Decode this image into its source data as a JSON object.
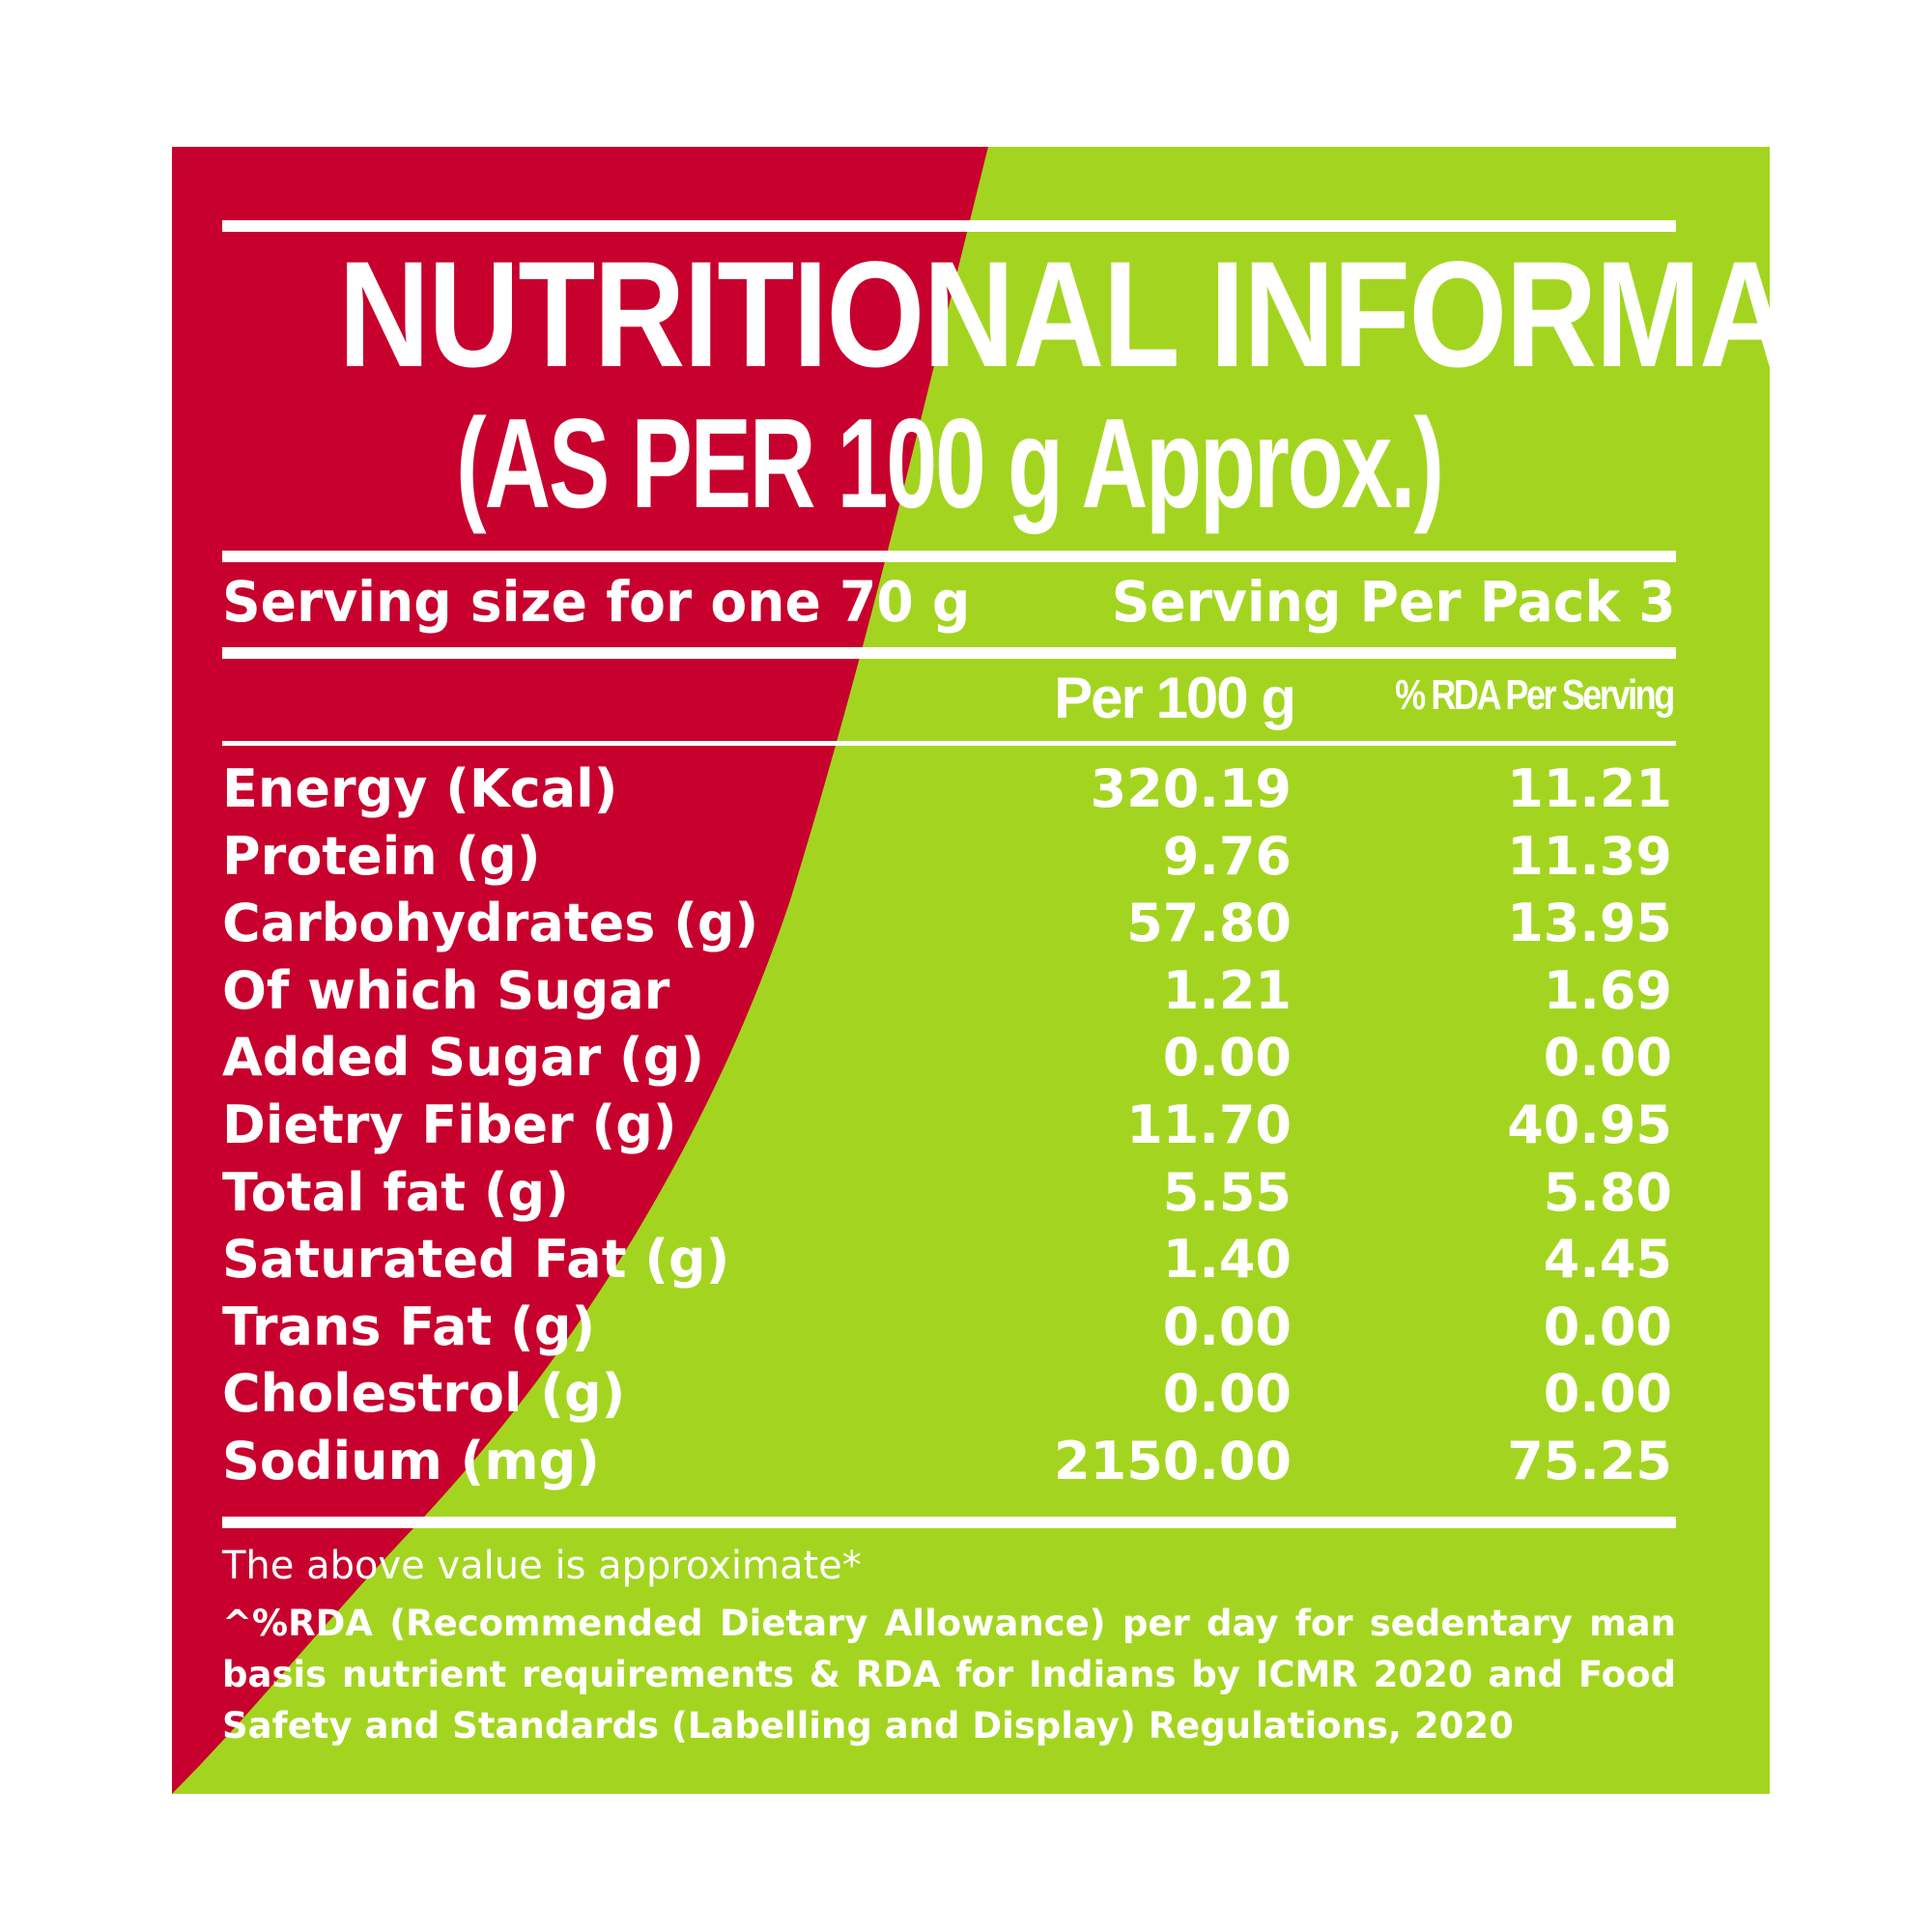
{
  "colors": {
    "red": "#c8002e",
    "green": "#a3d520",
    "text": "#ffffff"
  },
  "title": "NUTRITIONAL INFORMATION",
  "subtitle": "(AS PER 100 g Approx.)",
  "serving_size": "Serving size for one 70 g",
  "serving_per_pack": "Serving Per Pack 3",
  "columns": {
    "per_100g": "Per 100 g",
    "rda": "% RDA Per Serving"
  },
  "rows": [
    {
      "name": "Energy (Kcal)",
      "per_100g": "320.19",
      "rda": "11.21"
    },
    {
      "name": "Protein (g)",
      "per_100g": "9.76",
      "rda": "11.39"
    },
    {
      "name": "Carbohydrates (g)",
      "per_100g": "57.80",
      "rda": "13.95"
    },
    {
      "name": "Of which Sugar",
      "per_100g": "1.21",
      "rda": "1.69"
    },
    {
      "name": "Added Sugar (g)",
      "per_100g": "0.00",
      "rda": "0.00"
    },
    {
      "name": "Dietry Fiber (g)",
      "per_100g": "11.70",
      "rda": "40.95"
    },
    {
      "name": "Total fat (g)",
      "per_100g": "5.55",
      "rda": "5.80"
    },
    {
      "name": "Saturated Fat (g)",
      "per_100g": "1.40",
      "rda": "4.45"
    },
    {
      "name": "Trans Fat (g)",
      "per_100g": "0.00",
      "rda": "0.00"
    },
    {
      "name": "Cholestrol (g)",
      "per_100g": "0.00",
      "rda": "0.00"
    },
    {
      "name": "Sodium (mg)",
      "per_100g": "2150.00",
      "rda": "75.25"
    }
  ],
  "footnotes": {
    "approx": "The above value is approximate*",
    "rda_note": "^%RDA (Recommended Dietary Allowance) per day for sedentary man basis nutrient requirements & RDA for Indians by ICMR 2020 and Food Safety and Standards (Labelling and Display) Regulations, 2020"
  }
}
